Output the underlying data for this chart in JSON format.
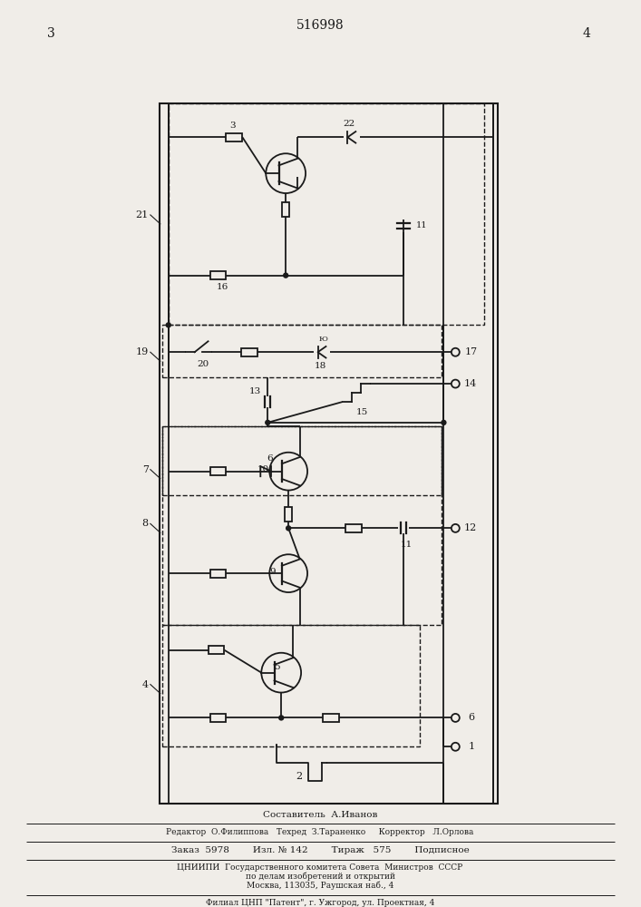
{
  "title": "516998",
  "page_left": "3",
  "page_right": "4",
  "bg_color": "#f0ede8",
  "line_color": "#1a1a1a",
  "composer_line": "Составитель  А.Иванов",
  "editor_line": "Редактор  О.Филиппова   Техред  З.Тараненко     Корректор   Л.Орлова",
  "order_line": "Заказ  5978       Изл. № 142       Тираж   575       Подписное",
  "org_line1": "ЦНИИПИ  Государственного комитета Совета  Министров  СССР",
  "org_line2": "по делам изобретений и открытий",
  "org_line3": "Москва, 113035, Раушская наб., 4",
  "branch_line": "Филиал ЦНП \"Патент\", г. Ужгород, ул. Проектная, 4"
}
